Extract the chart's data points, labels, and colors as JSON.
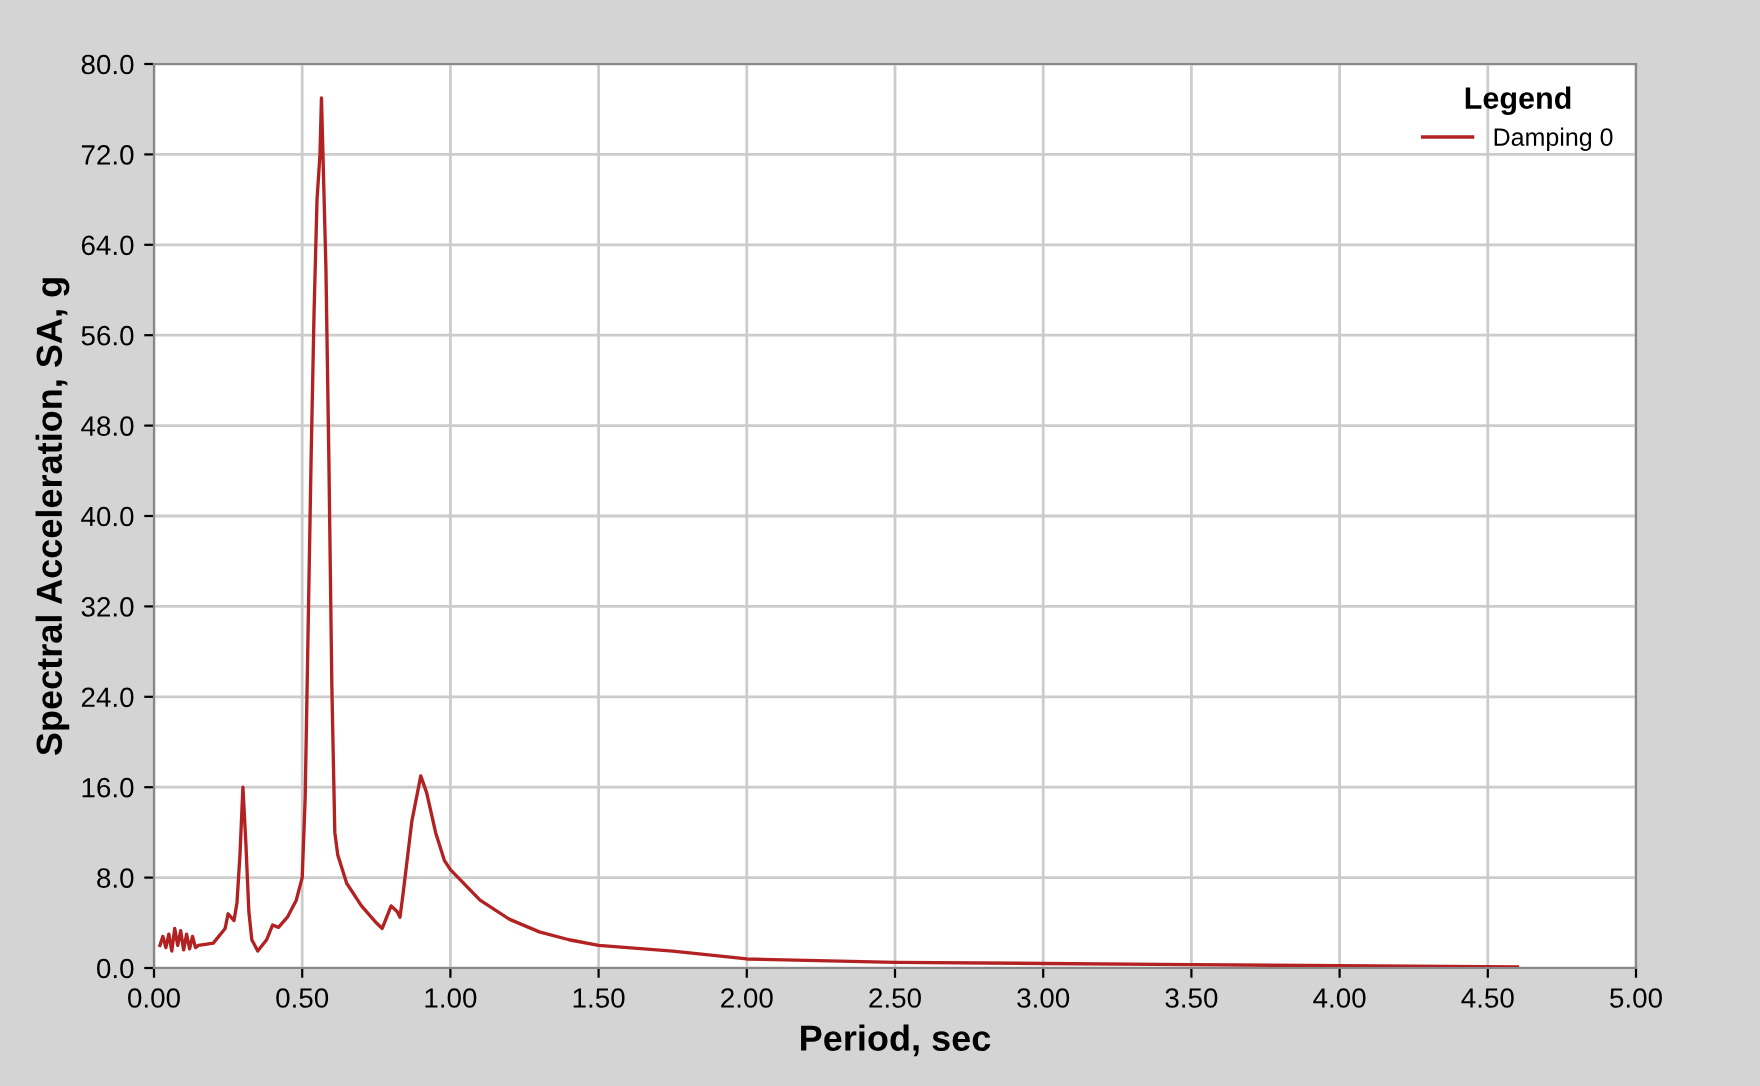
{
  "chart_data": {
    "type": "line",
    "xlabel": "Period, sec",
    "ylabel": "Spectral Acceleration, SA, g",
    "legend_title": "Legend",
    "legend": "top right",
    "grid": true,
    "marker": "none",
    "line_style": "solid",
    "xlim": [
      0,
      5
    ],
    "ylim": [
      0,
      80
    ],
    "xticks": [
      {
        "value": 0,
        "label": "0.00"
      },
      {
        "value": 0.5,
        "label": "0.50"
      },
      {
        "value": 1,
        "label": "1.00"
      },
      {
        "value": 1.5,
        "label": "1.50"
      },
      {
        "value": 2,
        "label": "2.00"
      },
      {
        "value": 2.5,
        "label": "2.50"
      },
      {
        "value": 3,
        "label": "3.00"
      },
      {
        "value": 3.5,
        "label": "3.50"
      },
      {
        "value": 4,
        "label": "4.00"
      },
      {
        "value": 4.5,
        "label": "4.50"
      },
      {
        "value": 5,
        "label": "5.00"
      }
    ],
    "yticks": [
      {
        "value": 0,
        "label": "0.0"
      },
      {
        "value": 8,
        "label": "8.0"
      },
      {
        "value": 16,
        "label": "16.0"
      },
      {
        "value": 24,
        "label": "24.0"
      },
      {
        "value": 32,
        "label": "32.0"
      },
      {
        "value": 40,
        "label": "40.0"
      },
      {
        "value": 48,
        "label": "48.0"
      },
      {
        "value": 56,
        "label": "56.0"
      },
      {
        "value": 64,
        "label": "64.0"
      },
      {
        "value": 72,
        "label": "72.0"
      },
      {
        "value": 80,
        "label": "80.0"
      }
    ],
    "series": [
      {
        "name": "Damping 0",
        "color": "#b22222",
        "x": [
          0.02,
          0.03,
          0.04,
          0.05,
          0.06,
          0.07,
          0.08,
          0.09,
          0.1,
          0.11,
          0.12,
          0.13,
          0.14,
          0.15,
          0.2,
          0.24,
          0.25,
          0.27,
          0.28,
          0.29,
          0.3,
          0.31,
          0.32,
          0.33,
          0.35,
          0.38,
          0.4,
          0.42,
          0.45,
          0.48,
          0.5,
          0.51,
          0.52,
          0.53,
          0.54,
          0.55,
          0.56,
          0.565,
          0.57,
          0.58,
          0.59,
          0.6,
          0.61,
          0.62,
          0.65,
          0.7,
          0.75,
          0.77,
          0.8,
          0.82,
          0.83,
          0.84,
          0.87,
          0.9,
          0.92,
          0.95,
          0.98,
          1.0,
          1.1,
          1.2,
          1.3,
          1.4,
          1.5,
          1.75,
          2.0,
          2.5,
          3.0,
          3.5,
          4.0,
          4.6
        ],
        "values": [
          2.0,
          2.8,
          1.8,
          3.0,
          1.5,
          3.5,
          2.0,
          3.3,
          1.6,
          3.0,
          1.7,
          2.8,
          1.8,
          2.0,
          2.2,
          3.5,
          4.8,
          4.2,
          5.8,
          10,
          16,
          11,
          5,
          2.5,
          1.5,
          2.5,
          3.8,
          3.6,
          4.5,
          6.0,
          8,
          15,
          30,
          45,
          58,
          68,
          72,
          77,
          72,
          62,
          45,
          25,
          12,
          10,
          7.5,
          5.5,
          4.0,
          3.5,
          5.5,
          5.0,
          4.5,
          6.5,
          13,
          17,
          15.5,
          12,
          9.5,
          8.7,
          6,
          4.3,
          3.2,
          2.5,
          2.0,
          1.5,
          0.8,
          0.5,
          0.4,
          0.3,
          0.2,
          0.1
        ]
      }
    ]
  }
}
